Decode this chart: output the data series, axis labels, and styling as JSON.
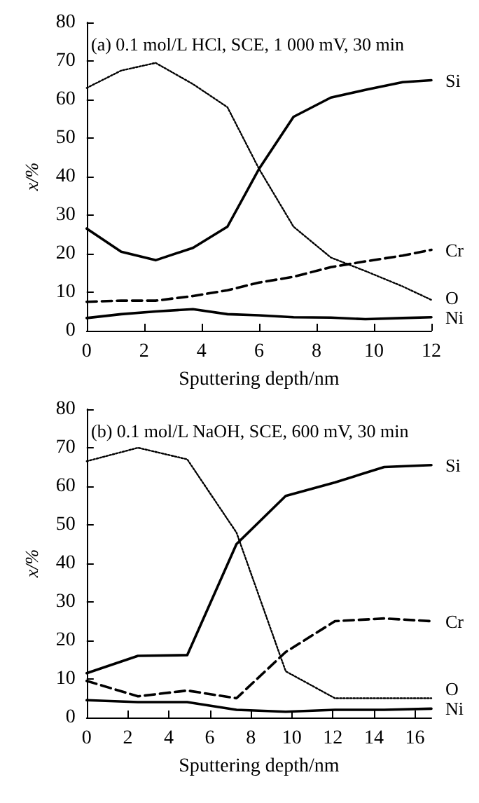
{
  "chart_data": [
    {
      "type": "line",
      "title": "(a) 0.1 mol/L HCl, SCE, 1 000 mV, 30 min",
      "xlabel": "Sputtering depth/nm",
      "ylabel": "x/%",
      "xlim": [
        0,
        12
      ],
      "xticks": [
        0,
        2,
        4,
        6,
        8,
        10,
        12
      ],
      "ylim": [
        0,
        80
      ],
      "yticks": [
        0,
        10,
        20,
        30,
        40,
        50,
        60,
        70,
        80
      ],
      "grid": false,
      "legend": false,
      "marker": "none",
      "x": [
        0,
        1.2,
        2.4,
        3.7,
        4.9,
        6,
        7.2,
        8.5,
        9.7,
        11,
        12
      ],
      "series": [
        {
          "name": "Si",
          "color": "#000000",
          "line_style": "solid",
          "values": [
            26.5,
            20.5,
            18.3,
            21.5,
            27,
            42,
            55.5,
            60.5,
            62.5,
            64.5,
            65
          ]
        },
        {
          "name": "O",
          "color": "#000000",
          "line_style": "dotted",
          "values": [
            63,
            67.5,
            69.5,
            64,
            58,
            42,
            27,
            19,
            15.5,
            11.5,
            8
          ]
        },
        {
          "name": "Cr",
          "color": "#000000",
          "line_style": "dashed",
          "values": [
            7.5,
            7.8,
            7.8,
            9,
            10.5,
            12.5,
            14,
            16.5,
            18,
            19.5,
            21
          ]
        },
        {
          "name": "Ni",
          "color": "#000000",
          "line_style": "solid",
          "values": [
            3.3,
            4.3,
            5,
            5.6,
            4.3,
            4,
            3.5,
            3.4,
            3,
            3.3,
            3.5
          ]
        }
      ]
    },
    {
      "type": "line",
      "title": "(b) 0.1 mol/L NaOH, SCE, 600 mV, 30 min",
      "xlabel": "Sputtering depth/nm",
      "ylabel": "x/%",
      "xlim": [
        0,
        16.8
      ],
      "xticks": [
        0,
        2,
        4,
        6,
        8,
        10,
        12,
        14,
        16
      ],
      "ylim": [
        0,
        80
      ],
      "yticks": [
        0,
        10,
        20,
        30,
        40,
        50,
        60,
        70,
        80
      ],
      "grid": false,
      "legend": false,
      "marker": "none",
      "x": [
        0,
        2.5,
        4.9,
        7.3,
        9.7,
        12.1,
        14.5,
        16.8
      ],
      "series": [
        {
          "name": "Si",
          "color": "#000000",
          "line_style": "solid",
          "values": [
            11.5,
            16,
            16.2,
            45,
            57.5,
            61,
            65,
            65.5
          ]
        },
        {
          "name": "O",
          "color": "#000000",
          "line_style": "dotted",
          "values": [
            66.5,
            70,
            67,
            48,
            12,
            5,
            5,
            5
          ]
        },
        {
          "name": "Cr",
          "color": "#000000",
          "line_style": "dashed",
          "values": [
            9.5,
            5.5,
            7,
            5,
            17,
            25,
            25.7,
            25
          ]
        },
        {
          "name": "Ni",
          "color": "#000000",
          "line_style": "solid",
          "values": [
            4.5,
            4,
            4,
            2,
            1.5,
            2,
            2,
            2.3
          ]
        }
      ]
    }
  ]
}
